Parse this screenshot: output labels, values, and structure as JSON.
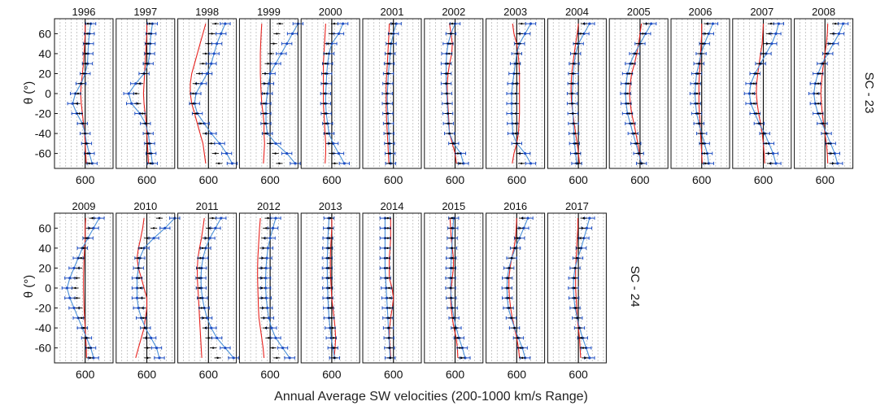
{
  "chart_data": {
    "type": "line",
    "xlabel": "Annual Average SW velocities (200-1000 km/s Range)",
    "ylabel": "θ (°)",
    "x_tick": "600",
    "y_ticks": [
      "60",
      "40",
      "20",
      "0",
      "-20",
      "-40",
      "-60"
    ],
    "row_labels": [
      "SC - 23",
      "SC - 24"
    ],
    "xlim": [
      490,
      700
    ],
    "ylim": [
      -75,
      75
    ],
    "grid": "vertical dotted",
    "theta": [
      70,
      60,
      50,
      40,
      30,
      20,
      10,
      0,
      -10,
      -20,
      -30,
      -40,
      -50,
      -60,
      -70
    ],
    "colors": {
      "red": "#e8231f",
      "blue_line": "#4a90d9",
      "black": "#000000",
      "blue_point": "#1f4fc4",
      "grid": "#bbbbbb"
    },
    "rows": [
      {
        "panels": [
          {
            "year": "1996",
            "blue": [
              620,
              615,
              612,
              610,
              608,
              600,
              585,
              565,
              555,
              570,
              590,
              600,
              605,
              615,
              625
            ],
            "red": [
              600,
              600,
              598,
              596,
              594,
              590,
              586,
              584,
              586,
              590,
              594,
              598,
              600,
              602,
              604
            ]
          },
          {
            "year": "1997",
            "blue": [
              620,
              615,
              612,
              610,
              605,
              590,
              560,
              535,
              545,
              575,
              595,
              605,
              610,
              615,
              620
            ],
            "red": [
              600,
              600,
              598,
              596,
              594,
              592,
              590,
              588,
              590,
              594,
              598,
              600,
              602,
              604,
              606
            ]
          },
          {
            "year": "1998",
            "blue": [
              660,
              645,
              630,
              620,
              610,
              595,
              575,
              555,
              550,
              560,
              585,
              610,
              640,
              665,
              685
            ],
            "red": [
              590,
              580,
              570,
              560,
              550,
              540,
              535,
              535,
              540,
              550,
              560,
              570,
              580,
              585,
              590
            ]
          },
          {
            "year": "1999",
            "blue": [
              700,
              680,
              660,
              640,
              620,
              600,
              595,
              590,
              585,
              585,
              585,
              590,
              620,
              660,
              690
            ],
            "red": [
              570,
              568,
              566,
              565,
              565,
              565,
              566,
              568,
              570,
              575,
              578,
              578,
              580,
              578,
              576
            ]
          },
          {
            "year": "2000",
            "blue": [
              640,
              625,
              600,
              590,
              585,
              582,
              580,
              578,
              578,
              580,
              585,
              590,
              605,
              625,
              645
            ],
            "red": [
              578,
              576,
              574,
              572,
              570,
              570,
              570,
              570,
              570,
              572,
              574,
              576,
              578,
              578,
              576
            ]
          },
          {
            "year": "2001",
            "blue": [
              610,
              600,
              592,
              588,
              585,
              582,
              580,
              578,
              578,
              580,
              582,
              584,
              586,
              588,
              590
            ],
            "red": [
              585,
              584,
              582,
              580,
              578,
              576,
              574,
              574,
              574,
              575,
              576,
              578,
              580,
              582,
              584
            ]
          },
          {
            "year": "2002",
            "blue": [
              600,
              585,
              575,
              570,
              568,
              568,
              568,
              570,
              572,
              574,
              576,
              580,
              595,
              620,
              630
            ],
            "red": [
              580,
              585,
              590,
              588,
              580,
              575,
              572,
              572,
              574,
              576,
              578,
              580,
              590,
              600,
              605
            ]
          },
          {
            "year": "2003",
            "blue": [
              650,
              630,
              610,
              600,
              595,
              590,
              585,
              582,
              582,
              582,
              584,
              586,
              600,
              630,
              650
            ],
            "red": [
              585,
              590,
              600,
              605,
              608,
              610,
              610,
              610,
              610,
              610,
              608,
              606,
              600,
              590,
              584
            ]
          },
          {
            "year": "2004",
            "blue": [
              640,
              620,
              600,
              590,
              585,
              582,
              580,
              578,
              578,
              580,
              582,
              584,
              586,
              590,
              594
            ],
            "red": [
              600,
              596,
              590,
              585,
              580,
              576,
              574,
              574,
              576,
              580,
              585,
              590,
              596,
              600,
              604
            ]
          },
          {
            "year": "2005",
            "blue": [
              640,
              620,
              600,
              580,
              565,
              555,
              550,
              548,
              550,
              555,
              565,
              575,
              585,
              595,
              605
            ],
            "red": [
              605,
              600,
              595,
              588,
              580,
              570,
              565,
              562,
              565,
              570,
              578,
              585,
              592,
              598,
              604
            ]
          },
          {
            "year": "2006",
            "blue": [
              640,
              625,
              610,
              598,
              590,
              582,
              578,
              576,
              578,
              582,
              590,
              600,
              610,
              620,
              625
            ],
            "red": [
              600,
              600,
              598,
              596,
              594,
              592,
              590,
              590,
              590,
              592,
              594,
              596,
              598,
              600,
              602
            ]
          },
          {
            "year": "2007",
            "blue": [
              655,
              645,
              630,
              610,
              590,
              570,
              555,
              550,
              555,
              570,
              585,
              605,
              620,
              635,
              645
            ],
            "red": [
              600,
              598,
              596,
              590,
              585,
              580,
              576,
              575,
              578,
              583,
              590,
              596,
              600,
              603,
              605
            ]
          },
          {
            "year": "2008",
            "blue": [
              665,
              650,
              630,
              610,
              590,
              575,
              565,
              560,
              565,
              575,
              590,
              605,
              620,
              635,
              645
            ],
            "red": [
              610,
              608,
              605,
              600,
              595,
              590,
              587,
              585,
              587,
              590,
              595,
              600,
              605,
              608,
              610
            ]
          }
        ]
      },
      {
        "panels": [
          {
            "year": "2009",
            "blue": [
              650,
              630,
              610,
              590,
              575,
              560,
              545,
              535,
              545,
              560,
              575,
              590,
              605,
              620,
              630
            ],
            "red": [
              602,
              600,
              600,
              598,
              596,
              595,
              594,
              594,
              595,
              596,
              598,
              600,
              602,
              604,
              605
            ]
          },
          {
            "year": "2010",
            "blue": [
              700,
              665,
              625,
              590,
              575,
              570,
              565,
              565,
              565,
              570,
              580,
              595,
              615,
              635,
              645
            ],
            "red": [
              590,
              585,
              578,
              570,
              565,
              570,
              580,
              590,
              600,
              600,
              595,
              590,
              580,
              570,
              560
            ]
          },
          {
            "year": "2011",
            "blue": [
              645,
              625,
              605,
              590,
              580,
              575,
              573,
              574,
              578,
              585,
              595,
              610,
              630,
              660,
              690
            ],
            "red": [
              585,
              580,
              575,
              568,
              562,
              560,
              560,
              562,
              564,
              566,
              568,
              570,
              572,
              574,
              576
            ]
          },
          {
            "year": "2012",
            "blue": [
              620,
              610,
              600,
              592,
              588,
              585,
              584,
              584,
              586,
              590,
              595,
              605,
              620,
              645,
              670
            ],
            "red": [
              565,
              562,
              560,
              558,
              556,
              555,
              555,
              556,
              557,
              558,
              560,
              565,
              570,
              575,
              578
            ]
          },
          {
            "year": "2013",
            "blue": [
              590,
              588,
              586,
              585,
              584,
              584,
              584,
              585,
              586,
              588,
              590,
              594,
              598,
              604,
              610
            ],
            "red": [
              600,
              600,
              598,
              596,
              595,
              595,
              596,
              598,
              600,
              604,
              608,
              612,
              614,
              612,
              608
            ]
          },
          {
            "year": "2014",
            "blue": [
              570,
              570,
              570,
              570,
              570,
              570,
              572,
              574,
              576,
              578,
              580,
              582,
              584,
              586,
              588
            ],
            "red": [
              590,
              590,
              590,
              588,
              585,
              585,
              585,
              595,
              600,
              596,
              590,
              586,
              585,
              588,
              590
            ]
          },
          {
            "year": "2015",
            "blue": [
              595,
              592,
              590,
              588,
              586,
              585,
              584,
              584,
              586,
              590,
              596,
              604,
              614,
              626,
              636
            ],
            "red": [
              582,
              584,
              586,
              590,
              594,
              594,
              590,
              586,
              584,
              586,
              590,
              596,
              604,
              608,
              610
            ]
          },
          {
            "year": "2016",
            "blue": [
              640,
              625,
              610,
              595,
              582,
              572,
              566,
              565,
              566,
              570,
              580,
              592,
              606,
              620,
              630
            ],
            "red": [
              600,
              598,
              596,
              590,
              582,
              576,
              572,
              572,
              574,
              578,
              584,
              592,
              600,
              606,
              610
            ]
          },
          {
            "year": "2017",
            "blue": [
              640,
              630,
              620,
              610,
              598,
              588,
              583,
              582,
              584,
              588,
              596,
              604,
              615,
              628,
              640
            ],
            "red": [
              598,
              598,
              596,
              594,
              592,
              590,
              590,
              590,
              592,
              594,
              596,
              600,
              604,
              606,
              608
            ]
          }
        ]
      }
    ]
  }
}
